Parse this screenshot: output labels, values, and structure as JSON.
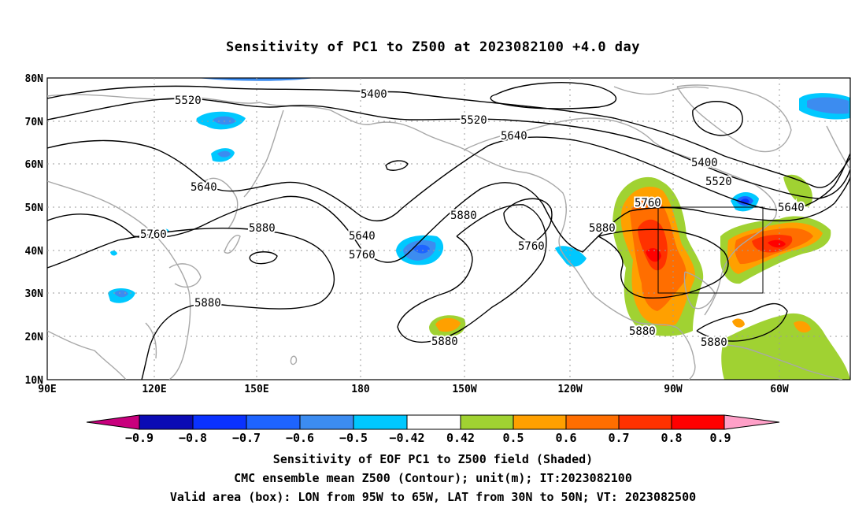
{
  "title": "Sensitivity of PC1 to Z500 at 2023082100 +4.0 day",
  "map": {
    "lat_labels": [
      "80N",
      "70N",
      "60N",
      "50N",
      "40N",
      "30N",
      "20N",
      "10N"
    ],
    "lon_labels": [
      "90E",
      "120E",
      "150E",
      "180",
      "150W",
      "120W",
      "90W",
      "60W"
    ],
    "valid_box": {
      "lon_from": "95W",
      "lon_to": "65W",
      "lat_from": "30N",
      "lat_to": "50N"
    }
  },
  "contour_labels": [
    "5520",
    "5400",
    "5520",
    "5640",
    "5640",
    "5400",
    "5520",
    "5760",
    "5640",
    "5760",
    "5880",
    "5640",
    "5760",
    "5880",
    "5880",
    "5760",
    "5880",
    "5880",
    "5880",
    "5880"
  ],
  "colorbar": {
    "labels": [
      "−0.9",
      "−0.8",
      "−0.7",
      "−0.6",
      "−0.5",
      "−0.42",
      "0.42",
      "0.5",
      "0.6",
      "0.7",
      "0.8",
      "0.9"
    ],
    "colors": [
      "#c8007d",
      "#0a0ab4",
      "#0a32ff",
      "#1e64ff",
      "#3c8cf0",
      "#00c8ff",
      "#ffffff",
      "#a0d232",
      "#ffa000",
      "#ff6e00",
      "#ff3200",
      "#ff0000",
      "#ffa0c8"
    ]
  },
  "captions": [
    "Sensitivity of EOF PC1 to Z500 field (Shaded)",
    "CMC ensemble mean Z500 (Contour); unit(m); IT:2023082100",
    "Valid area (box): LON from 95W to 65W, LAT from 30N to 50N; VT: 2023082500"
  ]
}
